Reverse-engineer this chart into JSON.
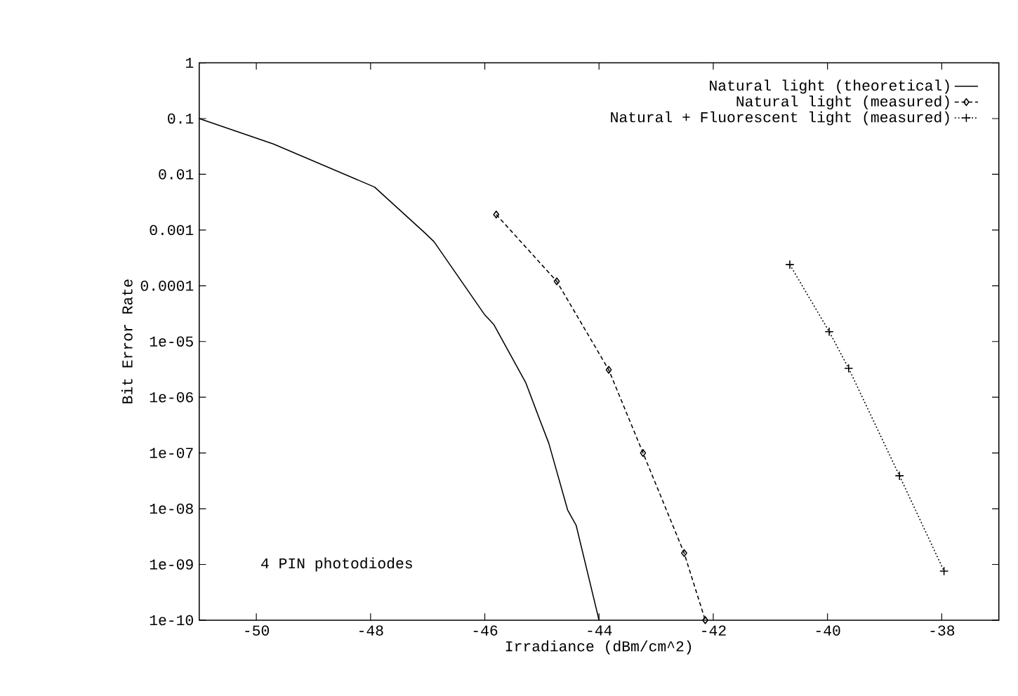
{
  "chart_data": {
    "type": "line",
    "xlabel": "Irradiance (dBm/cm^2)",
    "ylabel": "Bit Error Rate",
    "log": "y",
    "legend": "top right",
    "xlim": [
      -51,
      -37
    ],
    "ylim": [
      1e-10,
      1
    ],
    "xticks": [
      -50,
      -48,
      -46,
      -44,
      -42,
      -40,
      -38
    ],
    "yticks": [
      1,
      0.1,
      0.01,
      0.001,
      {
        "value": 0.0001,
        "label": "0.0001"
      },
      {
        "value": 1e-05,
        "label": "1e-05"
      },
      {
        "value": 1e-06,
        "label": "1e-06"
      },
      {
        "value": 1e-07,
        "label": "1e-07"
      },
      {
        "value": 1e-08,
        "label": "1e-08"
      },
      {
        "value": 1e-09,
        "label": "1e-09"
      },
      {
        "value": 1e-10,
        "label": "1e-10"
      }
    ],
    "annotations": [
      "4 PIN photodiodes"
    ],
    "series": [
      {
        "name": "Natural light (theoretical)",
        "color": "#000000",
        "line_style": "solid",
        "marker": "none",
        "x": [
          -51,
          -49.7,
          -47.93,
          -47.05,
          -46.89,
          -46.0,
          -45.84,
          -45.28,
          -45.04,
          -44.88,
          -44.55,
          -44.4,
          -44.0
        ],
        "values": [
          0.1,
          0.035,
          0.0059,
          0.00089,
          0.00062,
          3e-05,
          2e-05,
          1.8e-06,
          4e-07,
          1.5e-07,
          9.5e-09,
          5e-09,
          1e-10
        ]
      },
      {
        "name": "Natural light (measured)",
        "color": "#000000",
        "line_style": "dashed",
        "marker": "diamond",
        "x": [
          -45.8,
          -44.74,
          -43.83,
          -43.23,
          -42.51,
          -42.14
        ],
        "values": [
          0.0019,
          0.00012,
          3.1e-06,
          1e-07,
          1.6e-09,
          1e-10
        ]
      },
      {
        "name": "Natural + Fluorescent light (measured)",
        "color": "#000000",
        "line_style": "dotted",
        "marker": "cross",
        "x": [
          -40.66,
          -39.97,
          -39.63,
          -38.74,
          -37.96
        ],
        "values": [
          0.00024,
          1.5e-05,
          3.3e-06,
          3.9e-08,
          7.6e-10
        ]
      }
    ]
  }
}
